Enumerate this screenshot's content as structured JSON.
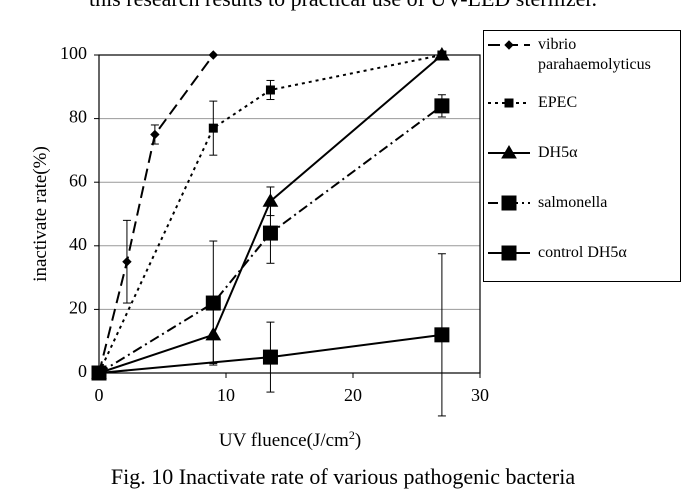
{
  "chart_data": {
    "type": "line",
    "header_text": "this research results to practical use of UV-LED sterilizer.",
    "caption": "Fig. 10   Inactivate rate of various pathogenic bacteria",
    "ylabel": "inactivate rate(%)",
    "xlabel": [
      "UV fluence(J/cm",
      "2",
      ")"
    ],
    "xlim": [
      0,
      30
    ],
    "xticks": [
      0,
      10,
      20,
      30
    ],
    "ylim": [
      0,
      100
    ],
    "yticks": [
      0,
      20,
      40,
      60,
      80,
      100
    ],
    "grid": true,
    "legend": "right",
    "series": [
      {
        "name": "vibrio parahaemolyticus",
        "color": "#000000",
        "marker": "diamond",
        "dash": "long-dash",
        "x": [
          0,
          2.2,
          4.4,
          9
        ],
        "values": [
          0,
          35,
          75,
          100
        ],
        "errors": [
          null,
          13,
          3,
          null
        ]
      },
      {
        "name": "EPEC",
        "color": "#000000",
        "marker": "small-square",
        "dash": "dotted",
        "x": [
          0,
          9,
          13.5,
          27
        ],
        "values": [
          0,
          77,
          89,
          100
        ],
        "errors": [
          null,
          8.5,
          3,
          null
        ]
      },
      {
        "name": "DH5α",
        "color": "#000000",
        "marker": "triangle",
        "dash": "solid",
        "x": [
          0,
          9,
          13.5,
          27
        ],
        "values": [
          0,
          12,
          54,
          100
        ],
        "errors": [
          null,
          9,
          4.5,
          null
        ]
      },
      {
        "name": "salmonella",
        "color": "#000000",
        "marker": "square",
        "dash": "dash-dot",
        "x": [
          0,
          9,
          13.5,
          27
        ],
        "values": [
          0,
          22,
          44,
          84
        ],
        "errors": [
          null,
          19.5,
          9.5,
          3.5
        ]
      },
      {
        "name": "control DH5α",
        "color": "#000000",
        "marker": "square",
        "dash": "solid",
        "x": [
          0,
          13.5,
          27
        ],
        "values": [
          0,
          5,
          12
        ],
        "errors": [
          null,
          11,
          25.5
        ]
      }
    ]
  }
}
